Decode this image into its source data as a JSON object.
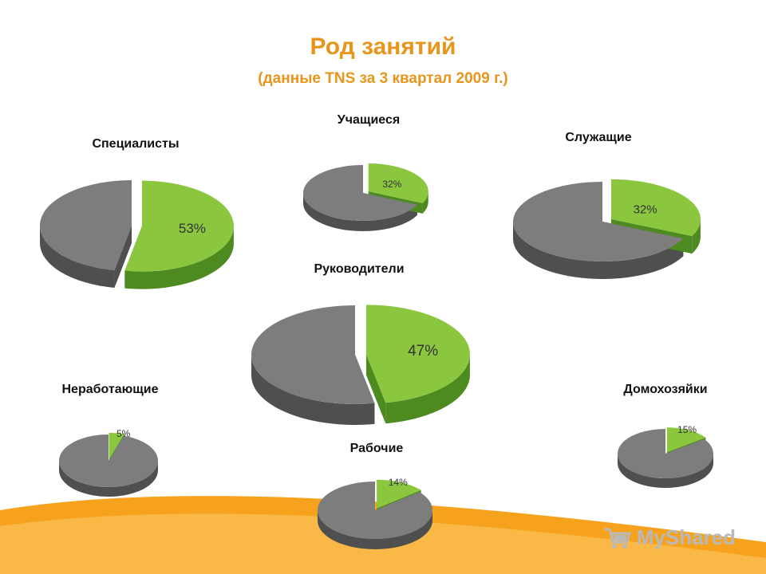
{
  "title": "Род занятий",
  "subtitle": "(данные TNS за 3 квартал 2009 г.)",
  "colors": {
    "title": "#e8961b",
    "slice": "#8bc63f",
    "rest": "#6e6e6e",
    "band": "#f7a21c"
  },
  "watermark": {
    "text": "MyShared",
    "icon": "cart-icon"
  },
  "chart_data": [
    {
      "type": "pie",
      "title": "Специалисты",
      "values": [
        53,
        47
      ],
      "labels": [
        "53%",
        ""
      ]
    },
    {
      "type": "pie",
      "title": "Учащиеся",
      "values": [
        32,
        68
      ],
      "labels": [
        "32%",
        ""
      ]
    },
    {
      "type": "pie",
      "title": "Служащие",
      "values": [
        32,
        68
      ],
      "labels": [
        "32%",
        ""
      ]
    },
    {
      "type": "pie",
      "title": "Руководители",
      "values": [
        47,
        53
      ],
      "labels": [
        "47%",
        ""
      ]
    },
    {
      "type": "pie",
      "title": "Неработающие",
      "values": [
        5,
        95
      ],
      "labels": [
        "5%",
        ""
      ]
    },
    {
      "type": "pie",
      "title": "Рабочие",
      "values": [
        14,
        86
      ],
      "labels": [
        "14%",
        ""
      ]
    },
    {
      "type": "pie",
      "title": "Домохозяйки",
      "values": [
        15,
        85
      ],
      "labels": [
        "15%",
        ""
      ]
    }
  ]
}
